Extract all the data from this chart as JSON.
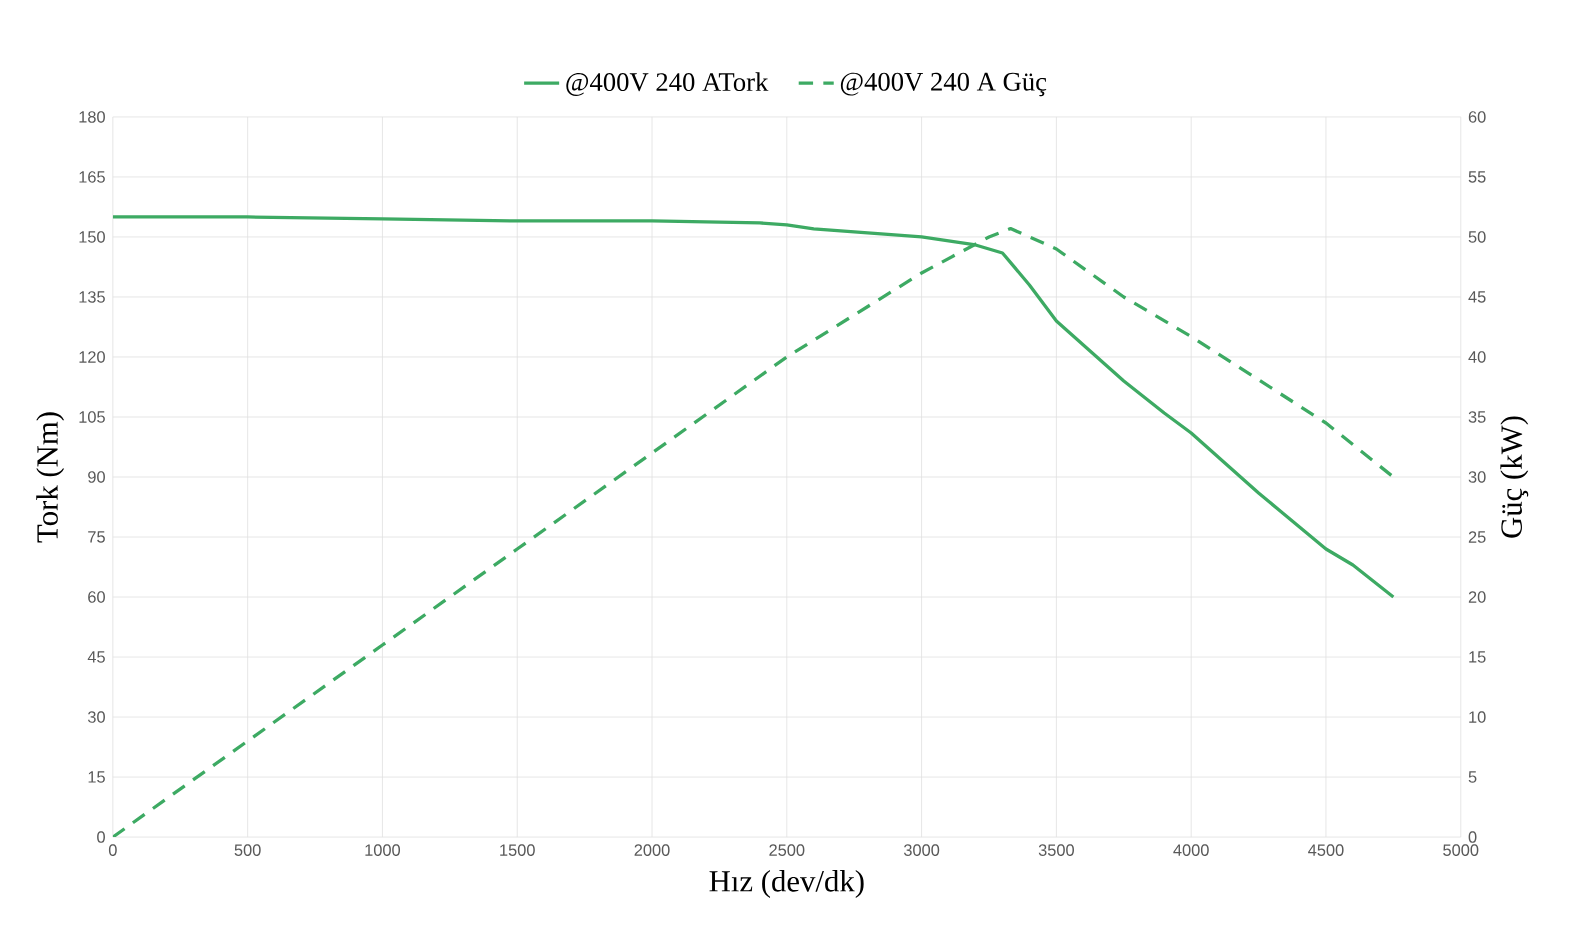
{
  "chart_data": {
    "type": "line",
    "xlabel": "Hız (dev/dk)",
    "ylabel": "Tork (Nm)",
    "y2label": "Güç (kW)",
    "xlim": [
      0,
      5000
    ],
    "xticks": [
      0,
      500,
      1000,
      1500,
      2000,
      2500,
      3000,
      3500,
      4000,
      4500,
      5000
    ],
    "ylim": [
      0,
      180
    ],
    "yticks": [
      0,
      15,
      30,
      45,
      60,
      75,
      90,
      105,
      120,
      135,
      150,
      165,
      180
    ],
    "y2lim": [
      0,
      60
    ],
    "y2ticks": [
      0,
      5,
      10,
      15,
      20,
      25,
      30,
      35,
      40,
      45,
      50,
      55,
      60
    ],
    "grid": true,
    "legend": "top",
    "marker": "none",
    "series": [
      {
        "name": "@400V 240 ATork",
        "color": "#3daa63",
        "line_style": "solid",
        "x": [
          0,
          500,
          1000,
          1500,
          2000,
          2400,
          2500,
          2600,
          2800,
          3000,
          3200,
          3300,
          3400,
          3500,
          3750,
          3900,
          4000,
          4250,
          4500,
          4600,
          4750
        ],
        "values": [
          155,
          155,
          154.5,
          154,
          154,
          153.5,
          153,
          152,
          151,
          150,
          148,
          146,
          138,
          129,
          114,
          106,
          101,
          86,
          72,
          68,
          60
        ]
      },
      {
        "name": "@400V 240 A  Güç",
        "color": "#3daa63",
        "line_style": "dashed",
        "axis": "y2",
        "x": [
          0,
          500,
          1000,
          1500,
          2000,
          2500,
          3000,
          3250,
          3330,
          3500,
          3750,
          4000,
          4500,
          4750
        ],
        "values": [
          0,
          8,
          16,
          24,
          32,
          40,
          47,
          50,
          50.7,
          49,
          45,
          41.7,
          34.5,
          30
        ]
      }
    ]
  }
}
